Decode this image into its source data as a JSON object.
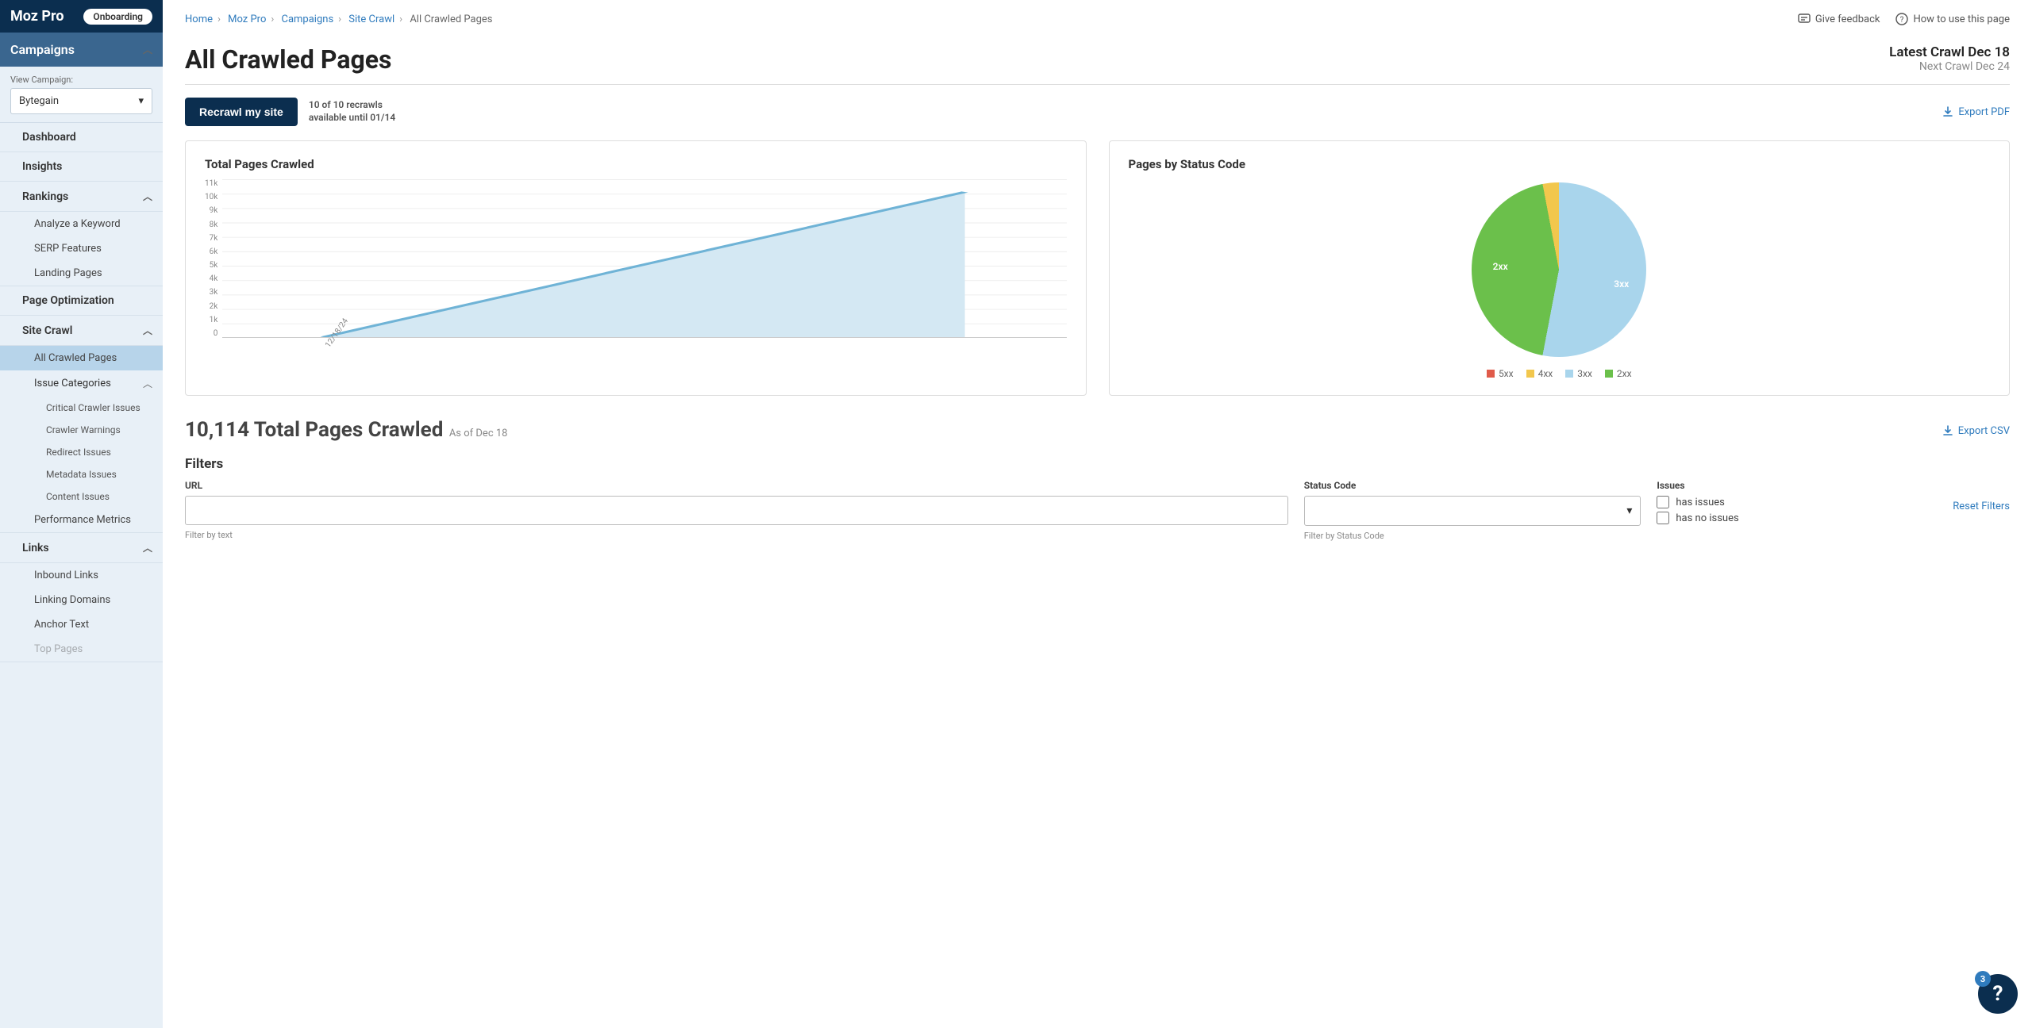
{
  "brand": "Moz Pro",
  "onboarding_label": "Onboarding",
  "sidebar": {
    "campaigns_header": "Campaigns",
    "view_campaign_label": "View Campaign:",
    "selected_campaign": "Bytegain",
    "dashboard": "Dashboard",
    "insights": "Insights",
    "rankings": "Rankings",
    "rankings_children": {
      "analyze": "Analyze a Keyword",
      "serp": "SERP Features",
      "landing": "Landing Pages"
    },
    "page_optimization": "Page Optimization",
    "site_crawl": "Site Crawl",
    "site_crawl_children": {
      "all_crawled": "All Crawled Pages",
      "issue_categories": "Issue Categories",
      "issue_children": {
        "critical": "Critical Crawler Issues",
        "warnings": "Crawler Warnings",
        "redirect": "Redirect Issues",
        "metadata": "Metadata Issues",
        "content": "Content Issues"
      },
      "performance": "Performance Metrics"
    },
    "links": "Links",
    "links_children": {
      "inbound": "Inbound Links",
      "domains": "Linking Domains",
      "anchor": "Anchor Text",
      "top_pages": "Top Pages"
    }
  },
  "breadcrumbs": {
    "home": "Home",
    "mozpro": "Moz Pro",
    "campaigns": "Campaigns",
    "sitecrawl": "Site Crawl",
    "current": "All Crawled Pages"
  },
  "top_actions": {
    "feedback": "Give feedback",
    "howto": "How to use this page"
  },
  "page_title": "All Crawled Pages",
  "crawl_meta": {
    "latest": "Latest Crawl Dec 18",
    "next": "Next Crawl Dec 24"
  },
  "recrawl_button": "Recrawl my site",
  "recrawl_info_line1": "10 of 10 recrawls",
  "recrawl_info_line2": "available until 01/14",
  "export_pdf": "Export PDF",
  "export_csv": "Export CSV",
  "line_chart": {
    "title": "Total Pages Crawled",
    "y_ticks": [
      "11k",
      "10k",
      "9k",
      "8k",
      "7k",
      "6k",
      "5k",
      "4k",
      "3k",
      "2k",
      "1k",
      "0"
    ],
    "x_label": "12/18/24",
    "ylim": [
      0,
      11000
    ],
    "start_value": 0,
    "end_value": 10114,
    "line_color": "#6fb3d6",
    "fill_color": "#d4e8f3",
    "grid_color": "#e5e5e5",
    "background_color": "#ffffff"
  },
  "pie_chart": {
    "title": "Pages by Status Code",
    "slices": [
      {
        "label": "3xx",
        "percent": 53,
        "color": "#a9d5ec"
      },
      {
        "label": "2xx",
        "percent": 44,
        "color": "#6bc04b"
      },
      {
        "label": "4xx",
        "percent": 3,
        "color": "#f2c74d"
      },
      {
        "label": "5xx",
        "percent": 0,
        "color": "#e05b4a"
      }
    ],
    "legend": [
      {
        "label": "5xx",
        "color": "#e05b4a"
      },
      {
        "label": "4xx",
        "color": "#f2c74d"
      },
      {
        "label": "3xx",
        "color": "#a9d5ec"
      },
      {
        "label": "2xx",
        "color": "#6bc04b"
      }
    ],
    "label_2xx": "2xx",
    "label_3xx": "3xx"
  },
  "total_heading": "10,114 Total Pages Crawled",
  "total_sub": "As of Dec 18",
  "filters": {
    "heading": "Filters",
    "url_label": "URL",
    "url_hint": "Filter by text",
    "status_label": "Status Code",
    "status_hint": "Filter by Status Code",
    "issues_label": "Issues",
    "has_issues": "has issues",
    "has_no_issues": "has no issues",
    "reset": "Reset Filters"
  },
  "fab_badge": "3",
  "colors": {
    "navy": "#0b2e4f",
    "blue_header": "#3a668f",
    "sidebar_bg": "#e8f0f7",
    "active_bg": "#b7d4ea",
    "link": "#2f7bbd"
  }
}
